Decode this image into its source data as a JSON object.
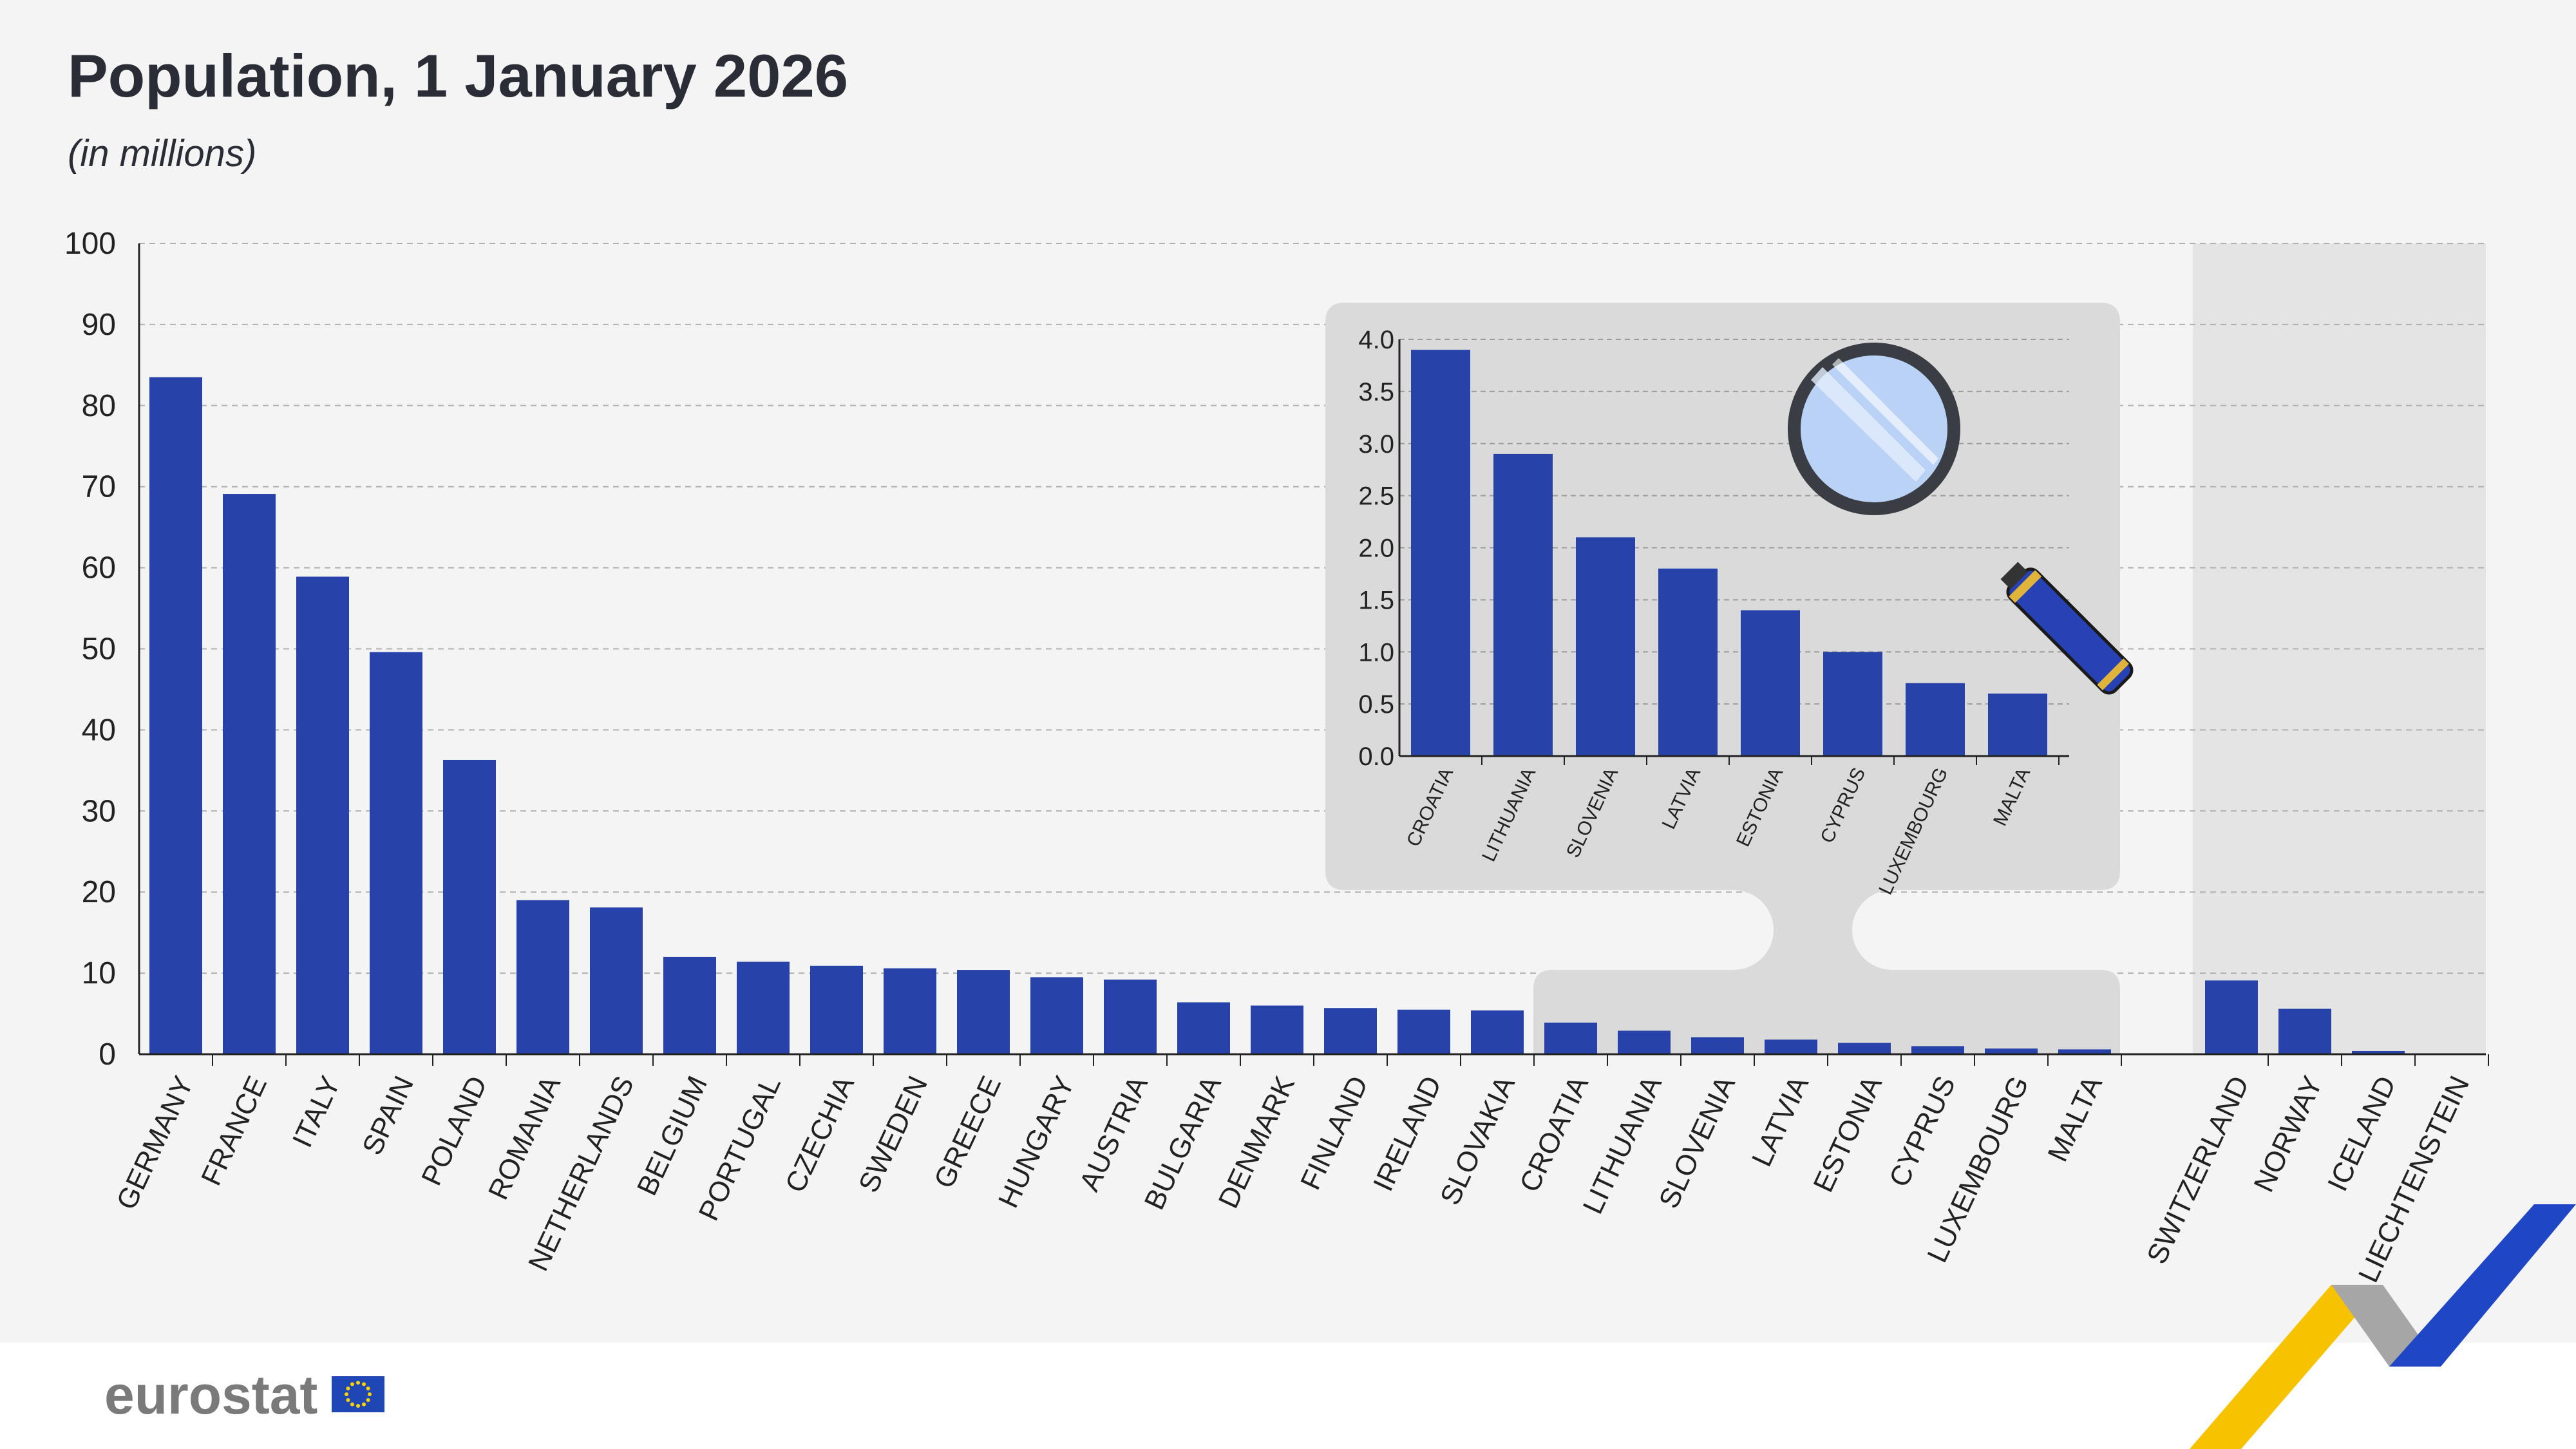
{
  "colors": {
    "background": "#f4f4f4",
    "footer": "#ffffff",
    "bar": "#2742a8",
    "gridline": "#b0b0b0",
    "efta_panel": "#e4e4e4",
    "inset_panel": "#dadada",
    "logo_text": "#7a7a7a",
    "eu_flag_blue": "#1f46b5",
    "eu_flag_stars": "#ffd200",
    "ribbon_yellow": "#f7c300",
    "ribbon_grey": "#a6a6a6",
    "ribbon_blue": "#1f46c4"
  },
  "chart_data": [
    {
      "id": "main",
      "type": "bar",
      "title": "Population, 1 January 2026",
      "subtitle": "(in millions)",
      "xlabel": "",
      "ylabel": "",
      "ylim": [
        0,
        100
      ],
      "yticks": [
        0,
        10,
        20,
        30,
        40,
        50,
        60,
        70,
        80,
        90,
        100
      ],
      "grid": true,
      "legend": "none",
      "groups": [
        {
          "name": "",
          "categories": [
            "GERMANY",
            "FRANCE",
            "ITALY",
            "SPAIN",
            "POLAND",
            "ROMANIA",
            "NETHERLANDS",
            "BELGIUM",
            "PORTUGAL",
            "CZECHIA",
            "SWEDEN",
            "GREECE",
            "HUNGARY",
            "AUSTRIA",
            "BULGARIA",
            "DENMARK",
            "FINLAND",
            "IRELAND",
            "SLOVAKIA",
            "CROATIA",
            "LITHUANIA",
            "SLOVENIA",
            "LATVIA",
            "ESTONIA",
            "CYPRUS",
            "LUXEMBOURG",
            "MALTA"
          ],
          "values": [
            83.5,
            69.1,
            58.9,
            49.6,
            36.3,
            19.0,
            18.1,
            12.0,
            11.4,
            10.9,
            10.6,
            10.4,
            9.5,
            9.2,
            6.4,
            6.0,
            5.7,
            5.5,
            5.4,
            3.9,
            2.9,
            2.1,
            1.8,
            1.4,
            1.0,
            0.7,
            0.6
          ]
        },
        {
          "name": "",
          "categories": [
            "SWITZERLAND",
            "NORWAY",
            "ICELAND",
            "LIECHTENSTEIN"
          ],
          "values": [
            9.1,
            5.6,
            0.4,
            0.04
          ]
        }
      ]
    },
    {
      "id": "inset",
      "type": "bar",
      "title": "",
      "ylim": [
        0,
        4.0
      ],
      "yticks": [
        "0.0",
        "0.5",
        "1.0",
        "1.5",
        "2.0",
        "2.5",
        "3.0",
        "3.5",
        "4.0"
      ],
      "grid": true,
      "categories": [
        "CROATIA",
        "LITHUANIA",
        "SLOVENIA",
        "LATVIA",
        "ESTONIA",
        "CYPRUS",
        "LUXEMBOURG",
        "MALTA"
      ],
      "values": [
        3.9,
        2.9,
        2.1,
        1.8,
        1.4,
        1.0,
        0.7,
        0.6
      ]
    }
  ],
  "icons": {
    "magnifier": "magnifying-glass-icon",
    "eu_flag": "eu-flag-icon",
    "ribbon": "ribbon-logo-icon"
  },
  "branding": {
    "logo_text": "eurostat"
  }
}
